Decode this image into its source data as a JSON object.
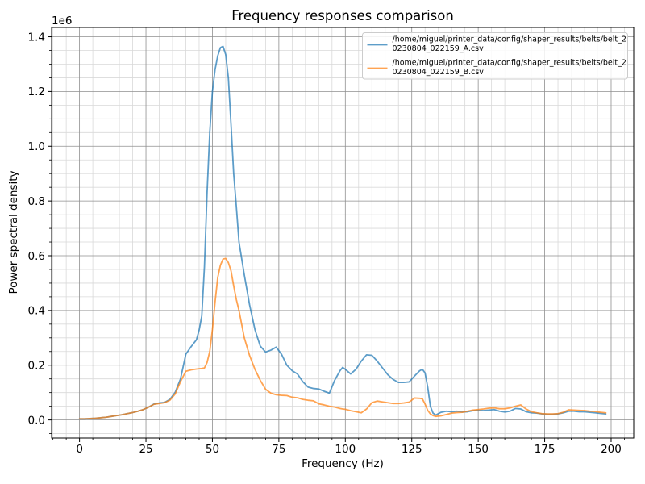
{
  "title": "Frequency responses comparison",
  "axes": {
    "x_label": "Frequency (Hz)",
    "y_label": "Power spectral density",
    "y_offset_label": "1e6",
    "x_tick_values": [
      0,
      25,
      50,
      75,
      100,
      125,
      150,
      175,
      200
    ],
    "x_tick_labels": [
      "0",
      "25",
      "50",
      "75",
      "100",
      "125",
      "150",
      "175",
      "200"
    ],
    "y_tick_values": [
      0.0,
      0.2,
      0.4,
      0.6,
      0.8,
      1.0,
      1.2,
      1.4
    ],
    "y_tick_labels": [
      "0.0",
      "0.2",
      "0.4",
      "0.6",
      "0.8",
      "1.0",
      "1.2",
      "1.4"
    ]
  },
  "legend": {
    "entries": [
      {
        "label_line1": "/home/miguel/printer_data/config/shaper_results/belts/belt_2",
        "label_line2": "0230804_022159_A.csv"
      },
      {
        "label_line1": "/home/miguel/printer_data/config/shaper_results/belts/belt_2",
        "label_line2": "0230804_022159_B.csv"
      }
    ]
  },
  "colors": {
    "series_a": "rgba(31,119,180,0.72)",
    "series_b": "rgba(255,127,14,0.72)",
    "series_a_base": "#1f77b4",
    "series_b_base": "#ff7f0e",
    "grid_major": "#8f8f8f",
    "grid_minor": "#d9d9d9",
    "frame": "#000000",
    "legend_border": "#cccccc",
    "legend_fill": "rgba(255,255,255,0.85)"
  },
  "chart_data": {
    "type": "line",
    "title": "Frequency responses comparison",
    "xlabel": "Frequency (Hz)",
    "ylabel": "Power spectral density",
    "y_unit_multiplier": 1000000,
    "xlim": [
      -10.5,
      208.5
    ],
    "ylim": [
      -0.066,
      1.434
    ],
    "x_major_step": 25,
    "x_minor_step": 5,
    "y_major_step": 0.2,
    "y_minor_step": 0.05,
    "grid": "both",
    "legend_position": "upper right",
    "x": [
      0,
      2,
      4,
      6,
      8,
      10,
      12,
      14,
      16,
      18,
      20,
      22,
      24,
      26,
      28,
      30,
      32,
      34,
      36,
      38,
      40,
      42,
      44,
      45,
      46,
      47,
      48,
      49,
      50,
      51,
      52,
      53,
      54,
      55,
      56,
      57,
      58,
      59,
      60,
      62,
      64,
      66,
      68,
      70,
      72,
      74,
      76,
      78,
      80,
      82,
      84,
      86,
      88,
      90,
      92,
      94,
      96,
      98,
      99,
      100,
      102,
      104,
      106,
      108,
      110,
      112,
      114,
      116,
      118,
      120,
      122,
      124,
      126,
      128,
      129,
      130,
      131,
      132,
      133,
      134,
      136,
      138,
      140,
      142,
      144,
      146,
      148,
      150,
      152,
      154,
      156,
      158,
      160,
      162,
      164,
      166,
      168,
      170,
      172,
      174,
      176,
      178,
      180,
      182,
      184,
      186,
      188,
      190,
      192,
      194,
      196,
      198
    ],
    "series": [
      {
        "name": "/home/miguel/printer_data/config/shaper_results/belts/belt_20230804_022159_A.csv",
        "values": [
          0.004,
          0.004,
          0.005,
          0.006,
          0.008,
          0.01,
          0.013,
          0.016,
          0.019,
          0.023,
          0.027,
          0.032,
          0.038,
          0.047,
          0.058,
          0.062,
          0.064,
          0.075,
          0.101,
          0.15,
          0.24,
          0.268,
          0.293,
          0.328,
          0.38,
          0.56,
          0.83,
          1.05,
          1.2,
          1.28,
          1.33,
          1.36,
          1.365,
          1.335,
          1.25,
          1.08,
          0.9,
          0.78,
          0.65,
          0.53,
          0.42,
          0.33,
          0.27,
          0.248,
          0.255,
          0.266,
          0.24,
          0.2,
          0.18,
          0.168,
          0.14,
          0.12,
          0.115,
          0.113,
          0.105,
          0.098,
          0.145,
          0.18,
          0.192,
          0.185,
          0.168,
          0.185,
          0.215,
          0.238,
          0.236,
          0.215,
          0.19,
          0.165,
          0.148,
          0.137,
          0.137,
          0.139,
          0.16,
          0.18,
          0.185,
          0.172,
          0.12,
          0.05,
          0.025,
          0.018,
          0.028,
          0.032,
          0.03,
          0.032,
          0.029,
          0.03,
          0.034,
          0.035,
          0.034,
          0.036,
          0.038,
          0.032,
          0.029,
          0.032,
          0.042,
          0.04,
          0.03,
          0.026,
          0.025,
          0.022,
          0.021,
          0.021,
          0.022,
          0.026,
          0.032,
          0.032,
          0.03,
          0.03,
          0.028,
          0.026,
          0.024,
          0.022
        ]
      },
      {
        "name": "/home/miguel/printer_data/config/shaper_results/belts/belt_20230804_022159_B.csv",
        "values": [
          0.004,
          0.004,
          0.005,
          0.006,
          0.008,
          0.01,
          0.013,
          0.016,
          0.019,
          0.023,
          0.027,
          0.032,
          0.038,
          0.047,
          0.057,
          0.06,
          0.063,
          0.072,
          0.095,
          0.14,
          0.178,
          0.183,
          0.186,
          0.187,
          0.188,
          0.19,
          0.21,
          0.25,
          0.33,
          0.43,
          0.52,
          0.565,
          0.588,
          0.59,
          0.575,
          0.545,
          0.49,
          0.44,
          0.4,
          0.3,
          0.235,
          0.185,
          0.145,
          0.112,
          0.098,
          0.092,
          0.09,
          0.089,
          0.083,
          0.081,
          0.075,
          0.072,
          0.07,
          0.059,
          0.055,
          0.05,
          0.047,
          0.042,
          0.04,
          0.039,
          0.034,
          0.03,
          0.026,
          0.04,
          0.063,
          0.069,
          0.066,
          0.063,
          0.06,
          0.06,
          0.062,
          0.065,
          0.08,
          0.079,
          0.077,
          0.058,
          0.035,
          0.022,
          0.016,
          0.013,
          0.015,
          0.02,
          0.025,
          0.027,
          0.028,
          0.032,
          0.036,
          0.038,
          0.04,
          0.043,
          0.044,
          0.041,
          0.041,
          0.044,
          0.05,
          0.055,
          0.04,
          0.03,
          0.026,
          0.023,
          0.022,
          0.022,
          0.023,
          0.028,
          0.037,
          0.036,
          0.035,
          0.034,
          0.032,
          0.031,
          0.028,
          0.026
        ]
      }
    ]
  }
}
